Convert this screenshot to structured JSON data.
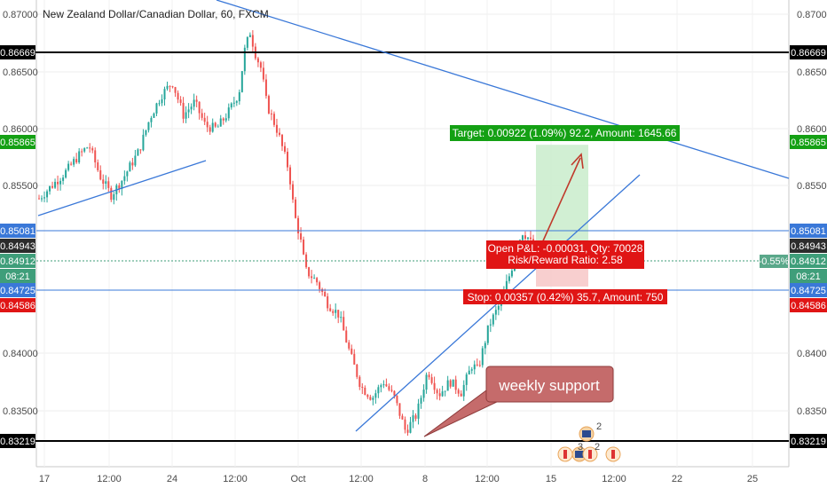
{
  "chart_data": {
    "type": "candlestick",
    "title": "New Zealand Dollar/Canadian Dollar, 60, FXCM",
    "ylim": [
      0.8293,
      0.8714
    ],
    "x_ticks": [
      "17",
      "12:00",
      "24",
      "12:00",
      "Oct",
      "12:00",
      "8",
      "12:00",
      "15",
      "12:00",
      "22",
      "25"
    ],
    "y_ticks": [
      "0.87000",
      "0.86500",
      "0.86000",
      "0.85500",
      "0.84000",
      "0.83500"
    ],
    "price_levels": [
      {
        "label": "0.86669",
        "value": 0.86669,
        "color": "#000000",
        "line": "solid-thick"
      },
      {
        "label": "0.85865",
        "value": 0.85865,
        "color": "#14a014",
        "line": "none"
      },
      {
        "label": "0.85081",
        "value": 0.85081,
        "color": "#3a78d8",
        "line": "solid-thin"
      },
      {
        "label": "0.84943",
        "value": 0.84943,
        "color": "#2c2c2c",
        "line": "none"
      },
      {
        "label": "0.84912",
        "value": 0.84912,
        "color": "#3f9e7a",
        "line": "dotted"
      },
      {
        "label": "08:21",
        "value": 0.84818,
        "color": "#3f9e7a",
        "line": "none"
      },
      {
        "label": "0.84725",
        "value": 0.84725,
        "color": "#3a78d8",
        "line": "solid-thin"
      },
      {
        "label": "0.84586",
        "value": 0.84586,
        "color": "#e01515",
        "line": "none"
      },
      {
        "label": "0.83219",
        "value": 0.83219,
        "color": "#000000",
        "line": "solid-thick"
      }
    ],
    "price_change_badge": "-0.55%",
    "position": {
      "target_label": "Target: 0.00922 (1.09%) 92.2, Amount: 1645.66",
      "stop_label": "Stop: 0.00357 (0.42%) 35.7, Amount: 750",
      "pnl_label": "Open P&L: -0.00031, Qty: 70028",
      "ratio_label": "Risk/Reward Ratio: 2.58",
      "entry": 0.84912,
      "target": 0.85834,
      "stop": 0.84555
    },
    "annotation": "weekly support",
    "event_markers": [
      "2",
      "3",
      "2"
    ],
    "colors": {
      "up": "#26a69a",
      "down": "#ef5350",
      "trendline": "#3a78d8",
      "arrow": "#c0392b",
      "callout": "#c56b6b"
    },
    "price_path": [
      [
        0,
        0.8535
      ],
      [
        2,
        0.8545
      ],
      [
        5,
        0.856
      ],
      [
        7,
        0.8573
      ],
      [
        9,
        0.8583
      ],
      [
        11,
        0.8555
      ],
      [
        13,
        0.8538
      ],
      [
        15,
        0.8552
      ],
      [
        18,
        0.8578
      ],
      [
        20,
        0.8608
      ],
      [
        22,
        0.8628
      ],
      [
        24,
        0.864
      ],
      [
        26,
        0.861
      ],
      [
        28,
        0.8622
      ],
      [
        30,
        0.86
      ],
      [
        32,
        0.8598
      ],
      [
        34,
        0.8612
      ],
      [
        36,
        0.863
      ],
      [
        37,
        0.8668
      ],
      [
        38,
        0.8685
      ],
      [
        39,
        0.8665
      ],
      [
        40,
        0.8652
      ],
      [
        41,
        0.862
      ],
      [
        43,
        0.8595
      ],
      [
        45,
        0.856
      ],
      [
        46,
        0.852
      ],
      [
        47,
        0.85
      ],
      [
        48,
        0.847
      ],
      [
        50,
        0.846
      ],
      [
        52,
        0.844
      ],
      [
        54,
        0.843
      ],
      [
        56,
        0.8395
      ],
      [
        58,
        0.8365
      ],
      [
        60,
        0.8355
      ],
      [
        62,
        0.837
      ],
      [
        64,
        0.8355
      ],
      [
        65,
        0.834
      ],
      [
        66,
        0.8325
      ],
      [
        68,
        0.834
      ],
      [
        70,
        0.838
      ],
      [
        72,
        0.8358
      ],
      [
        74,
        0.837
      ],
      [
        76,
        0.836
      ],
      [
        78,
        0.8385
      ],
      [
        79,
        0.838
      ],
      [
        81,
        0.842
      ],
      [
        83,
        0.844
      ],
      [
        85,
        0.847
      ],
      [
        86,
        0.849
      ],
      [
        87,
        0.8505
      ],
      [
        88,
        0.85
      ],
      [
        89,
        0.8491
      ]
    ]
  }
}
